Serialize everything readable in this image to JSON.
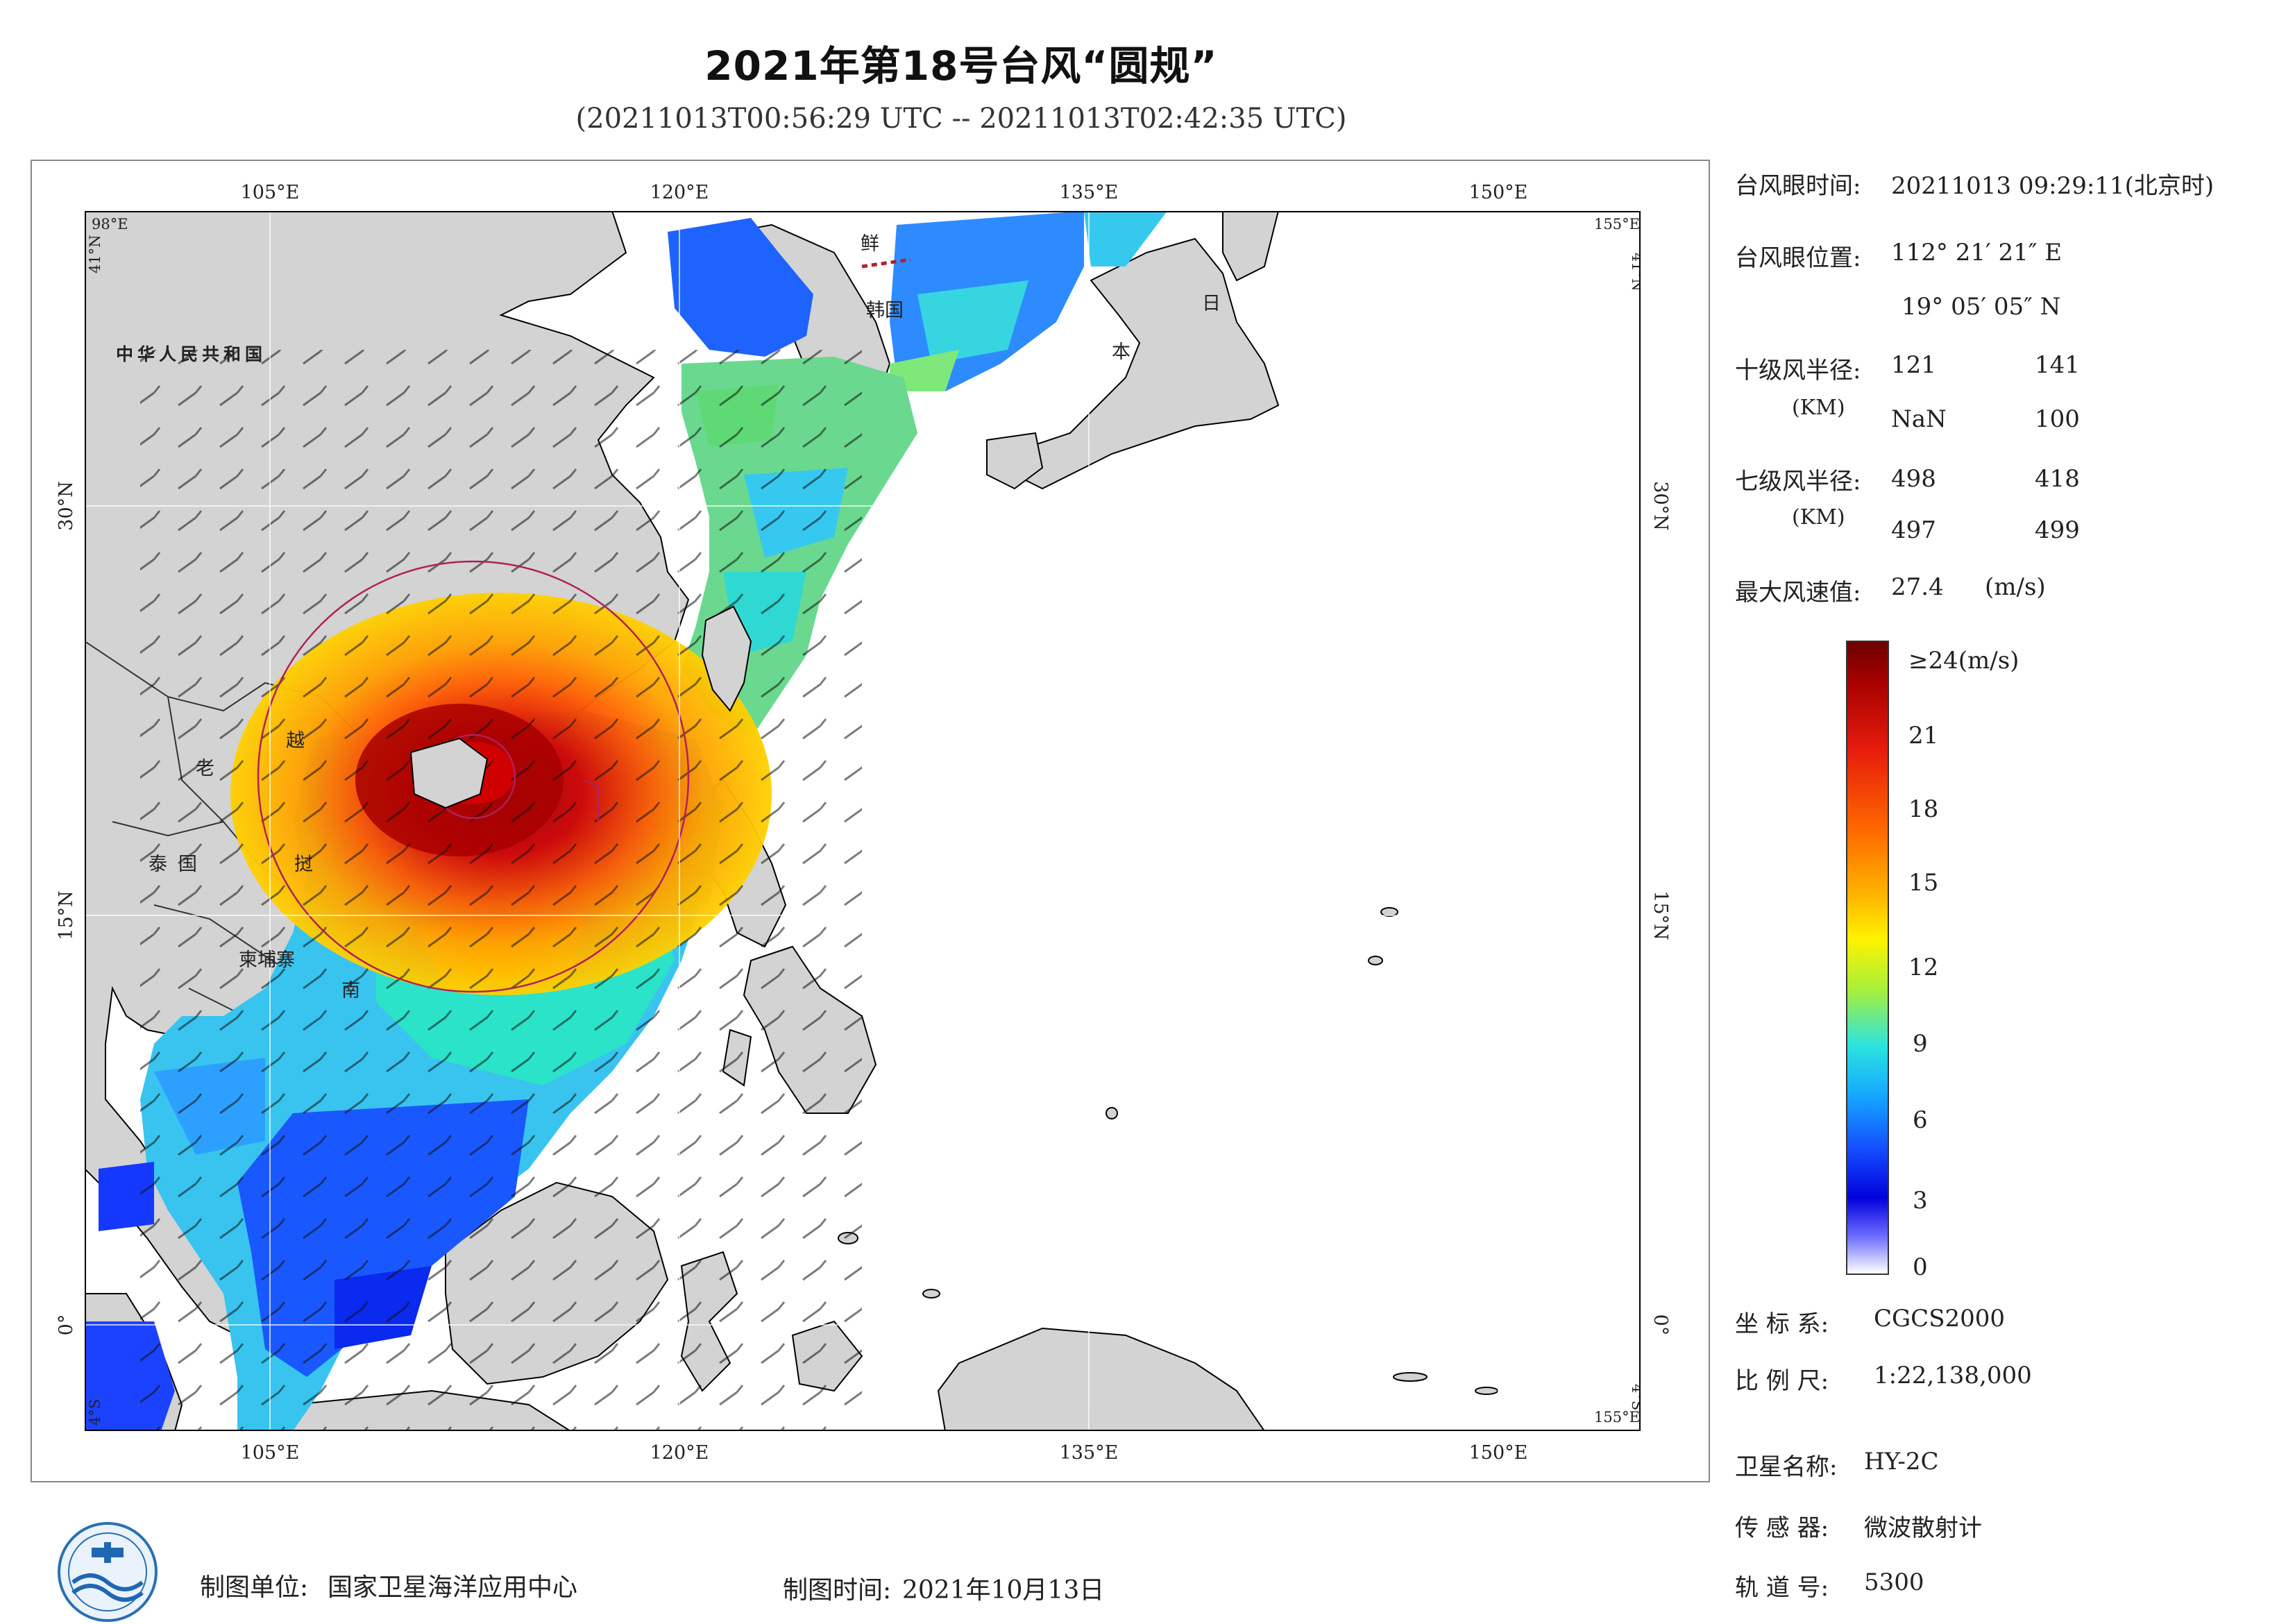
{
  "title": "2021年第18号台风“圆规”",
  "subtitle": "(20211013T00:56:29 UTC -- 20211013T02:42:35 UTC)",
  "map": {
    "lon_ticks": [
      "105°E",
      "120°E",
      "135°E",
      "150°E"
    ],
    "lat_ticks_left": [
      "30°N",
      "15°N",
      "0°"
    ],
    "lat_ticks_right": [
      "30°N",
      "15°N",
      "0°"
    ],
    "corner_labels": {
      "top_left_lon": "98°E",
      "top_left_lat": "41°N",
      "top_right_lon": "155°E",
      "top_right_lat": "41°N",
      "bottom_left_lat": "4°S",
      "bottom_right_lat": "4°S",
      "bottom_right_lon": "155°E"
    },
    "place_names": {
      "china": "中华人民共和国",
      "korea_n": "鲜",
      "korea_s": "韩国",
      "japan_1": "日",
      "japan_2": "本",
      "laos": "老",
      "viet_1": "越",
      "viet_2": "挝",
      "viet_3": "南",
      "thailand": "泰国",
      "cambodia": "柬埔寨"
    },
    "land_color": "#d3d3d3",
    "coast_color": "#000000"
  },
  "info": {
    "eye_time_label": "台风眼时间:",
    "eye_time_value": "20211013 09:29:11(北京时)",
    "eye_pos_label": "台风眼位置:",
    "eye_lon": "112° 21′ 21″ E",
    "eye_lat": "19° 05′ 05″ N",
    "r10_label": "十级风半径:",
    "r10_unit": "(KM)",
    "r10_values": [
      "121",
      "141",
      "NaN",
      "100"
    ],
    "r7_label": "七级风半径:",
    "r7_unit": "(KM)",
    "r7_values": [
      "498",
      "418",
      "497",
      "499"
    ],
    "max_wind_label": "最大风速值:",
    "max_wind_value": "27.4",
    "max_wind_unit": "(m/s)"
  },
  "colorbar": {
    "top_label": "≥24(m/s)",
    "labels": [
      "21",
      "18",
      "15",
      "12",
      "9",
      "6",
      "3",
      "0"
    ]
  },
  "meta_right": {
    "crs_label": "坐 标 系:",
    "crs_value": "CGCS2000",
    "scale_label": "比 例 尺:",
    "scale_value": "1:22,138,000",
    "sat_label": "卫星名称:",
    "sat_value": "HY-2C",
    "sensor_label": "传 感 器:",
    "sensor_value": "微波散射计",
    "orbit_label": "轨 道 号:",
    "orbit_value": "5300"
  },
  "footer": {
    "org_label": "制图单位:",
    "org_value": "国家卫星海洋应用中心",
    "date_label": "制图时间:",
    "date_value": "2021年10月13日"
  }
}
